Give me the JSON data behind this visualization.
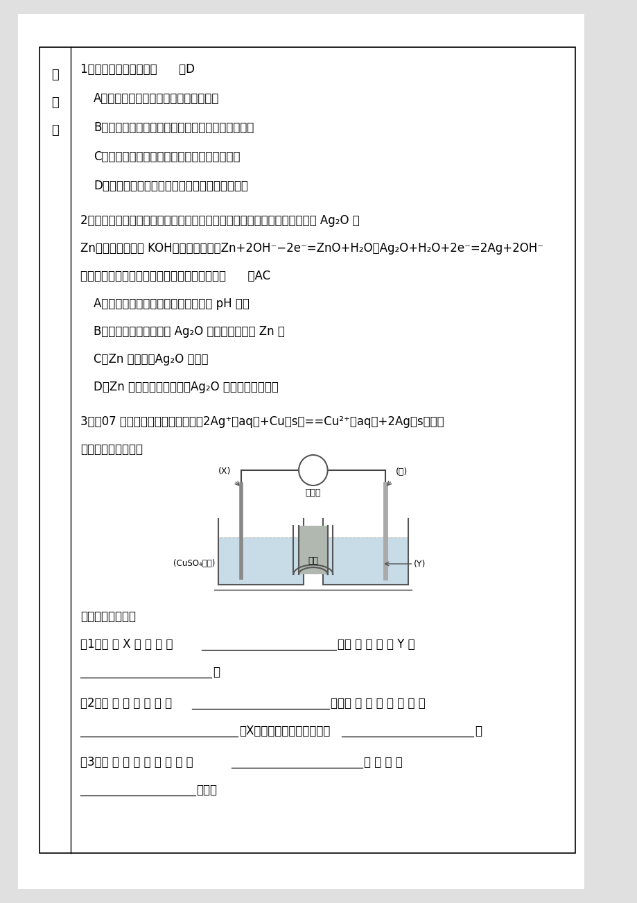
{
  "bg_outer": "#e8e8e8",
  "bg_page": "#ffffff",
  "border_color": "#000000",
  "text_color": "#000000",
  "line1": "1．下列说法正确的是（      ）D",
  "line_A1": "A．原电池是把电能转化为化学能的装置",
  "line_B1": "B．原电池中电子流出的一极是正极，发生氧化反应",
  "line_C1": "C．原电池的两极发生的反应均为氧化还原反应",
  "line_D1": "D．形成原电池后，原电池中的阳离子向正极移动",
  "line2a": "2．微型鈕扣电池在现代生活中有广泛应用。有一种銀锌电池，其电极分别是 Ag₂O 和",
  "line2b": "Zn，电解质溶液为 KOH，电极反应为：Zn+2OH⁻−2e⁻=ZnO+H₂O；Ag₂O+H₂O+2e⁻=2Ag+2OH⁻",
  "line2c": "根据上述反应式，判断下列叙述中正确的是：（      ）AC",
  "line_A2": "A．在使用过程中，电池负极区溶液的 pH 减小",
  "line_B2": "B．使用过程中，电子由 Ag₂O 极经外电路流向 Zn 极",
  "line_C2": "C．Zn 是负极，Ag₂O 是正极",
  "line_D2": "D．Zn 电极发生还原反应，Ag₂O 电极发生氧化反应",
  "line3a": "3．（07 海南）依据氧化还原反应：2Ag⁺（aq）+Cu（s）==Cu²⁺（aq）+2Ag（s）设计",
  "line3b": "的原电池如图所示。",
  "ans0": "请回答下列问题：",
  "ans1a": "（1）电 极 X 的 材 料 是",
  "ans1b": "；电 解 质 溶 液 Y 是",
  "ans1c": "；",
  "ans2a": "（2）銀 电 极 为 电 池 的",
  "ans2b": "极，发 生 的 电 极 反 应 为",
  "ans2c": "；X电极上发生的电极反应为",
  "ans2d": "；",
  "ans3a": "（3）外 电 路 中 的 电 子 是 从",
  "ans3b": "电 极 流 向",
  "ans3c": "电极。"
}
